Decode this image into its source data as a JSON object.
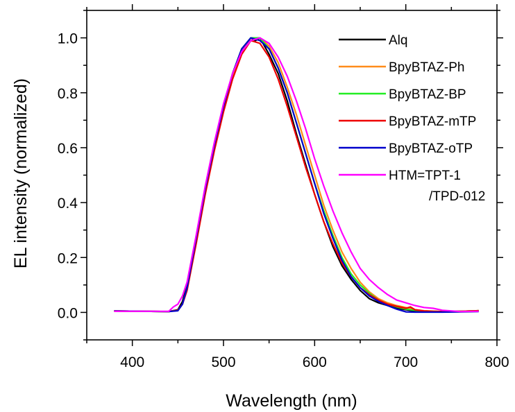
{
  "chart_data": {
    "type": "line",
    "title": "",
    "xlabel": "Wavelength (nm)",
    "ylabel": "EL intensity (normalized)",
    "xlim": [
      350,
      800
    ],
    "ylim": [
      -0.1,
      1.1
    ],
    "xticks": [
      400,
      500,
      600,
      700,
      800
    ],
    "yticks": [
      0.0,
      0.2,
      0.4,
      0.6,
      0.8,
      1.0
    ],
    "ytick_labels": [
      "0.0",
      "0.2",
      "0.4",
      "0.6",
      "0.8",
      "1.0"
    ],
    "grid": false,
    "legend": "top-right",
    "series": [
      {
        "name": "Alq",
        "color": "#000000",
        "x": [
          380,
          440,
          450,
          455,
          460,
          470,
          480,
          490,
          500,
          510,
          520,
          530,
          535,
          540,
          545,
          550,
          560,
          570,
          580,
          590,
          600,
          610,
          620,
          630,
          640,
          650,
          660,
          670,
          680,
          690,
          700,
          710,
          720,
          740,
          760,
          780
        ],
        "y": [
          0.005,
          0.003,
          0.01,
          0.04,
          0.1,
          0.27,
          0.45,
          0.61,
          0.75,
          0.87,
          0.96,
          1.0,
          0.99,
          1.0,
          0.97,
          0.94,
          0.87,
          0.77,
          0.65,
          0.54,
          0.43,
          0.33,
          0.24,
          0.17,
          0.12,
          0.08,
          0.05,
          0.035,
          0.025,
          0.015,
          0.01,
          0.005,
          0.003,
          0.003,
          0.004,
          0.006
        ]
      },
      {
        "name": "BpyBTAZ-Ph",
        "color": "#FF8C1A",
        "x": [
          380,
          440,
          450,
          455,
          460,
          470,
          480,
          490,
          500,
          510,
          520,
          530,
          540,
          550,
          560,
          570,
          580,
          590,
          600,
          610,
          620,
          630,
          640,
          650,
          660,
          670,
          680,
          690,
          700,
          710,
          720,
          740,
          760,
          780
        ],
        "y": [
          0.005,
          0.003,
          0.008,
          0.03,
          0.09,
          0.26,
          0.44,
          0.6,
          0.74,
          0.86,
          0.95,
          1.0,
          1.0,
          0.97,
          0.91,
          0.82,
          0.72,
          0.61,
          0.5,
          0.39,
          0.3,
          0.22,
          0.16,
          0.11,
          0.075,
          0.05,
          0.035,
          0.025,
          0.018,
          0.01,
          0.006,
          0.003,
          0.004,
          0.006
        ]
      },
      {
        "name": "BpyBTAZ-BP",
        "color": "#22EE22",
        "x": [
          380,
          440,
          450,
          455,
          460,
          470,
          480,
          490,
          500,
          510,
          520,
          530,
          540,
          550,
          560,
          570,
          580,
          590,
          600,
          610,
          620,
          630,
          640,
          650,
          660,
          670,
          680,
          690,
          700,
          710,
          720,
          740,
          760,
          780
        ],
        "y": [
          0.005,
          0.003,
          0.008,
          0.03,
          0.09,
          0.27,
          0.45,
          0.61,
          0.75,
          0.87,
          0.96,
          1.0,
          1.0,
          0.96,
          0.89,
          0.8,
          0.69,
          0.58,
          0.47,
          0.37,
          0.28,
          0.2,
          0.14,
          0.1,
          0.07,
          0.045,
          0.03,
          0.02,
          0.012,
          0.008,
          0.005,
          0.003,
          0.004,
          0.006
        ]
      },
      {
        "name": "BpyBTAZ-mTP",
        "color": "#EE0000",
        "x": [
          380,
          440,
          450,
          455,
          460,
          470,
          480,
          490,
          500,
          510,
          520,
          530,
          540,
          550,
          560,
          570,
          580,
          590,
          600,
          610,
          620,
          630,
          640,
          650,
          660,
          670,
          680,
          690,
          700,
          705,
          710,
          720,
          740,
          760,
          780
        ],
        "y": [
          0.005,
          0.003,
          0.008,
          0.03,
          0.08,
          0.25,
          0.43,
          0.59,
          0.73,
          0.85,
          0.94,
          0.99,
          0.98,
          0.93,
          0.85,
          0.75,
          0.64,
          0.53,
          0.43,
          0.33,
          0.25,
          0.18,
          0.13,
          0.09,
          0.065,
          0.045,
          0.03,
          0.022,
          0.015,
          0.02,
          0.01,
          0.005,
          0.003,
          0.004,
          0.006
        ]
      },
      {
        "name": "BpyBTAZ-oTP",
        "color": "#0000CC",
        "x": [
          380,
          440,
          450,
          455,
          460,
          470,
          480,
          490,
          500,
          510,
          520,
          530,
          540,
          550,
          560,
          570,
          580,
          590,
          600,
          610,
          620,
          630,
          640,
          650,
          660,
          670,
          680,
          690,
          700,
          710,
          720,
          740,
          760,
          780
        ],
        "y": [
          0.005,
          0.003,
          0.006,
          0.03,
          0.09,
          0.27,
          0.45,
          0.61,
          0.75,
          0.87,
          0.96,
          1.0,
          0.99,
          0.96,
          0.89,
          0.8,
          0.69,
          0.58,
          0.47,
          0.36,
          0.27,
          0.19,
          0.13,
          0.09,
          0.06,
          0.04,
          0.025,
          0.012,
          0.002,
          0.001,
          0.001,
          0.001,
          0.002,
          0.003
        ]
      },
      {
        "name": "HTM=TPT-1\n/TPD-012",
        "color": "#FF00FF",
        "x": [
          380,
          440,
          445,
          450,
          455,
          460,
          470,
          480,
          490,
          500,
          510,
          520,
          530,
          540,
          550,
          560,
          570,
          580,
          590,
          600,
          610,
          620,
          630,
          640,
          650,
          660,
          670,
          680,
          690,
          700,
          710,
          720,
          730,
          740,
          760,
          780
        ],
        "y": [
          0.004,
          0.004,
          0.02,
          0.03,
          0.06,
          0.11,
          0.28,
          0.46,
          0.62,
          0.76,
          0.87,
          0.95,
          0.99,
          1.0,
          0.98,
          0.93,
          0.86,
          0.77,
          0.67,
          0.56,
          0.46,
          0.37,
          0.29,
          0.22,
          0.16,
          0.12,
          0.09,
          0.065,
          0.045,
          0.035,
          0.025,
          0.018,
          0.015,
          0.008,
          0.003,
          0.004
        ]
      }
    ]
  }
}
